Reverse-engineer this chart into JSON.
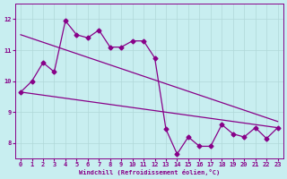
{
  "xlabel": "Windchill (Refroidissement éolien,°C)",
  "bg_color": "#c8eef0",
  "grid_color": "#b0d8d8",
  "line_color": "#880088",
  "x_data": [
    0,
    1,
    2,
    3,
    4,
    5,
    6,
    7,
    8,
    9,
    10,
    11,
    12,
    13,
    14,
    15,
    16,
    17,
    18,
    19,
    20,
    21,
    22,
    23
  ],
  "y_main": [
    9.65,
    10.0,
    10.6,
    10.3,
    11.95,
    11.5,
    11.4,
    11.65,
    11.1,
    11.1,
    11.3,
    11.3,
    10.75,
    8.45,
    7.65,
    8.2,
    7.9,
    7.9,
    8.6,
    8.3,
    8.2,
    8.5,
    8.15,
    8.5
  ],
  "trend1_x0": 0,
  "trend1_y0": 9.65,
  "trend1_x1": 23,
  "trend1_y1": 8.5,
  "trend2_x0": 0,
  "trend2_y0": 11.5,
  "trend2_x1": 23,
  "trend2_y1": 8.7,
  "ylim": [
    7.5,
    12.5
  ],
  "xlim": [
    -0.5,
    23.5
  ],
  "yticks": [
    8,
    9,
    10,
    11,
    12
  ]
}
